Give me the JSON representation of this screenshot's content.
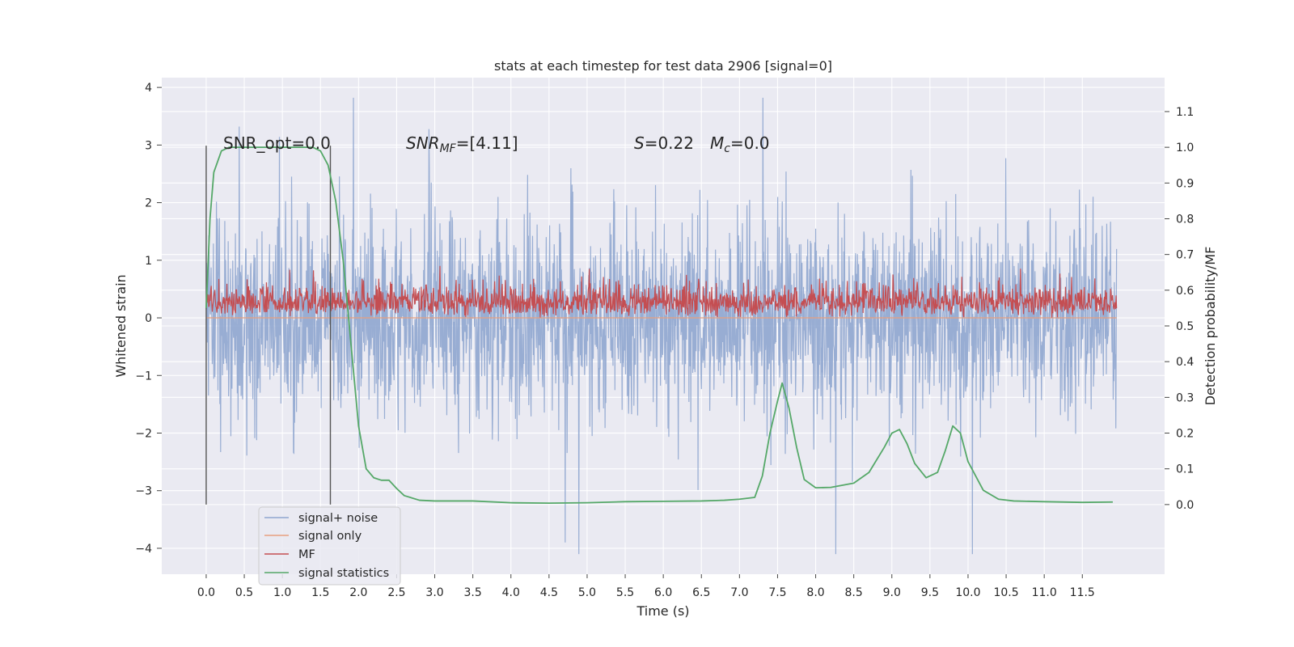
{
  "chart_data": {
    "type": "line",
    "title": "stats at each timestep for test data 2906 [signal=0]",
    "xlabel": "Time (s)",
    "ylabel_left": "Whitened strain",
    "ylabel_right": "Detection probability/MF",
    "xlim": [
      -0.5833,
      12.58
    ],
    "ylim_left": [
      -4.45,
      4.17
    ],
    "ylim_right": [
      -0.195,
      1.195
    ],
    "xticks": [
      "0.0",
      "0.5",
      "1.0",
      "1.5",
      "2.0",
      "2.5",
      "3.0",
      "3.5",
      "4.0",
      "4.5",
      "5.0",
      "5.5",
      "6.0",
      "6.5",
      "7.0",
      "7.5",
      "8.0",
      "8.5",
      "9.0",
      "9.5",
      "10.0",
      "10.5",
      "11.0",
      "11.5"
    ],
    "yticks_left": [
      "4",
      "3",
      "2",
      "1",
      "0",
      "−1",
      "−2",
      "−3",
      "−4"
    ],
    "yticks_right": [
      "1.1",
      "1.0",
      "0.9",
      "0.8",
      "0.7",
      "0.6",
      "0.5",
      "0.4",
      "0.3",
      "0.2",
      "0.1",
      "0.0"
    ],
    "annotations": {
      "snr_opt": "SNR_opt=0.0",
      "snr_mf_prefix": "SNR",
      "snr_mf_sub": "MF",
      "snr_mf_value": "=[4.11]",
      "s_label": "S",
      "s_value": "=0.22",
      "mc_label": "M",
      "mc_sub": "c",
      "mc_value": "=0.0"
    },
    "vertical_markers_x": [
      0.0,
      1.63
    ],
    "legend": {
      "placement": "lower-left",
      "entries": [
        "signal+ noise",
        "signal only",
        "MF",
        "signal statistics"
      ]
    },
    "grid": true,
    "colors": {
      "background": "#eaeaf2",
      "grid": "#ffffff",
      "noise": "#8fa6cf",
      "signal_only": "#e8a07f",
      "mf": "#c44e52",
      "stats": "#55a868",
      "marker": "#555555"
    },
    "series": [
      {
        "name": "signal+ noise",
        "axis": "left",
        "description_of_extent": "white-noise band",
        "x_range": [
          0.0,
          11.95
        ],
        "typical_max": 1.6,
        "typical_min": -1.6,
        "peak_max": 3.82,
        "peak_min": -4.1
      },
      {
        "name": "MF",
        "axis": "left",
        "x_range": [
          0.0,
          11.95
        ],
        "typical_max": 0.5,
        "typical_min": 0.0,
        "peak_max": 0.98
      },
      {
        "name": "signal only",
        "axis": "left",
        "x": [
          0.0,
          11.95
        ],
        "y": [
          0.0,
          0.0
        ]
      },
      {
        "name": "signal statistics",
        "axis": "right",
        "x": [
          0.0,
          0.05,
          0.1,
          0.2,
          0.3,
          0.5,
          1.0,
          1.4,
          1.5,
          1.6,
          1.7,
          1.8,
          1.9,
          2.0,
          2.1,
          2.2,
          2.3,
          2.4,
          2.5,
          2.6,
          2.8,
          3.0,
          3.5,
          4.0,
          4.5,
          5.0,
          5.5,
          6.0,
          6.5,
          6.8,
          7.0,
          7.2,
          7.3,
          7.4,
          7.5,
          7.56,
          7.65,
          7.75,
          7.85,
          8.0,
          8.2,
          8.5,
          8.7,
          8.9,
          9.0,
          9.1,
          9.2,
          9.3,
          9.45,
          9.6,
          9.7,
          9.8,
          9.9,
          10.0,
          10.2,
          10.4,
          10.6,
          11.0,
          11.5,
          11.9
        ],
        "y": [
          0.55,
          0.8,
          0.93,
          0.99,
          1.0,
          1.0,
          1.0,
          1.0,
          0.99,
          0.95,
          0.85,
          0.68,
          0.45,
          0.22,
          0.1,
          0.075,
          0.068,
          0.068,
          0.045,
          0.025,
          0.012,
          0.01,
          0.01,
          0.005,
          0.004,
          0.005,
          0.008,
          0.009,
          0.01,
          0.012,
          0.015,
          0.02,
          0.08,
          0.2,
          0.29,
          0.34,
          0.27,
          0.16,
          0.07,
          0.047,
          0.048,
          0.06,
          0.09,
          0.16,
          0.2,
          0.21,
          0.17,
          0.115,
          0.075,
          0.09,
          0.15,
          0.22,
          0.2,
          0.12,
          0.04,
          0.015,
          0.01,
          0.008,
          0.006,
          0.007
        ]
      }
    ]
  }
}
